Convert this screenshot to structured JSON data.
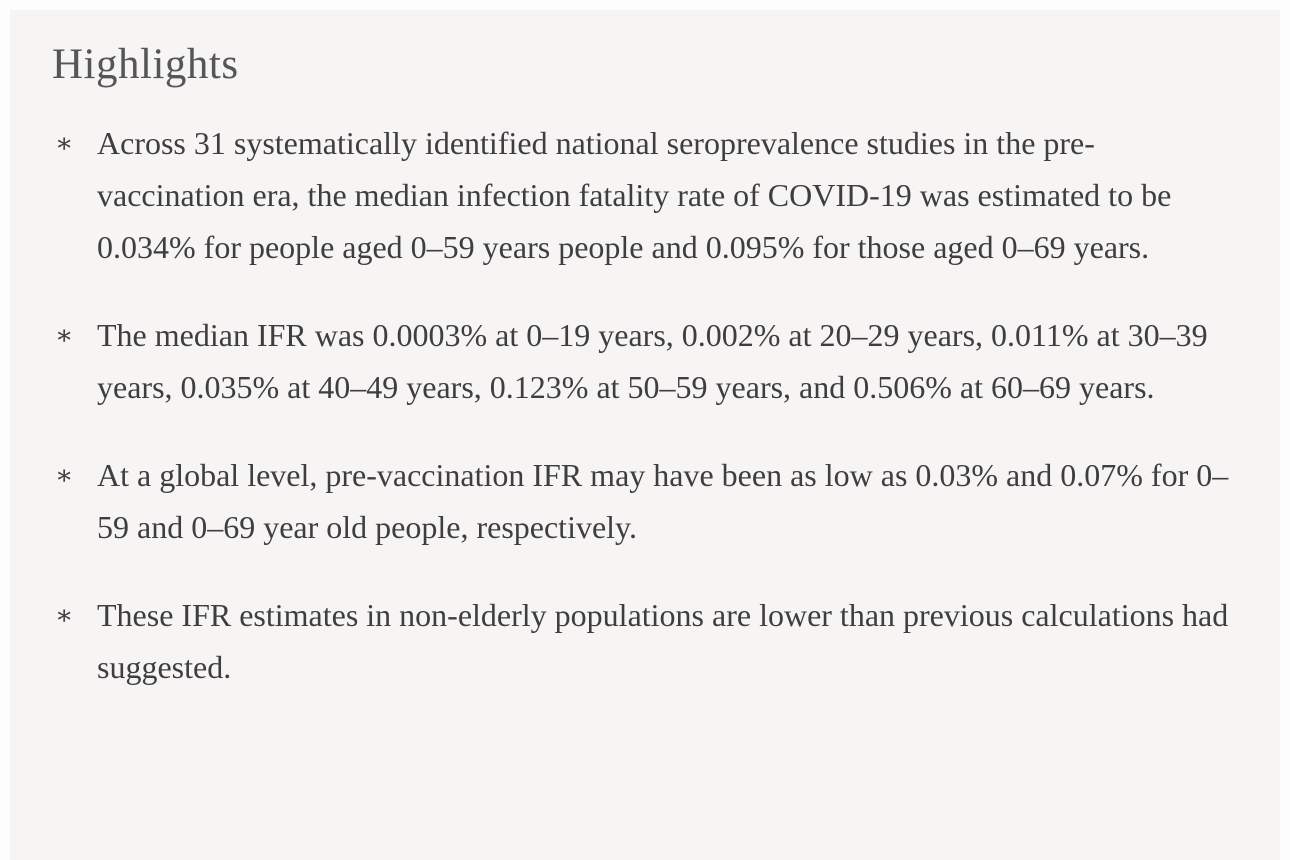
{
  "page": {
    "title": "Highlights"
  },
  "highlights": {
    "marker": "∗",
    "items": [
      {
        "text": "Across 31 systematically identified national seroprevalence studies in the pre-vaccination era, the median infection fatality rate of COVID-19 was estimated to be 0.034% for people aged 0–59 years people and 0.095% for those aged 0–69 years."
      },
      {
        "text": "The median IFR was 0.0003% at 0–19 years, 0.002% at 20–29 years, 0.011% at 30–39 years, 0.035% at 40–49 years, 0.123% at 50–59 years, and 0.506% at 60–69 years."
      },
      {
        "text": "At a global level, pre-vaccination IFR may have been as low as 0.03% and 0.07% for 0–59 and 0–69 year old people, respectively."
      },
      {
        "text": "These IFR estimates in non-elderly populations are lower than previous calculations had suggested."
      }
    ]
  },
  "colors": {
    "page_background": "#fdfdfd",
    "panel_background": "#f6f5f3",
    "title_text": "#55555a",
    "body_text": "#3e3e42"
  }
}
